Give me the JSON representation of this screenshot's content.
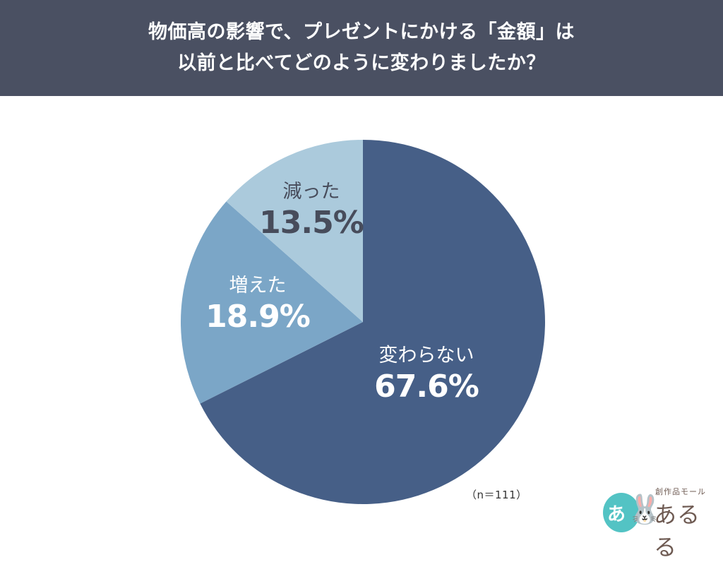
{
  "header": {
    "title_line1": "物価高の影響で、プレゼントにかける「金額」は",
    "title_line2": "以前と比べてどのように変わりましたか？",
    "background": "#4a5062"
  },
  "chart_data": {
    "type": "pie",
    "title": "物価高の影響で、プレゼントにかける「金額」は以前と比べてどのように変わりましたか？",
    "categories": [
      "変わらない",
      "増えた",
      "減った"
    ],
    "values": [
      67.6,
      18.9,
      13.5
    ],
    "labels": [
      "67.6%",
      "18.9%",
      "13.5%"
    ],
    "colors": [
      "#465f87",
      "#7ba6c7",
      "#abcadc"
    ],
    "start_angle": "12 o'clock, clockwise",
    "legend": "none (labels inside slices)",
    "sample_size": "（n＝111）"
  },
  "slices": [
    {
      "name": "変わらない",
      "pct": "67.6%"
    },
    {
      "name": "増えた",
      "pct": "18.9%"
    },
    {
      "name": "減った",
      "pct": "13.5%"
    }
  ],
  "footnote": {
    "sample": "（n＝111）"
  },
  "logo": {
    "mark": "あ",
    "tagline": "創作品モール",
    "brand": "あるる"
  }
}
